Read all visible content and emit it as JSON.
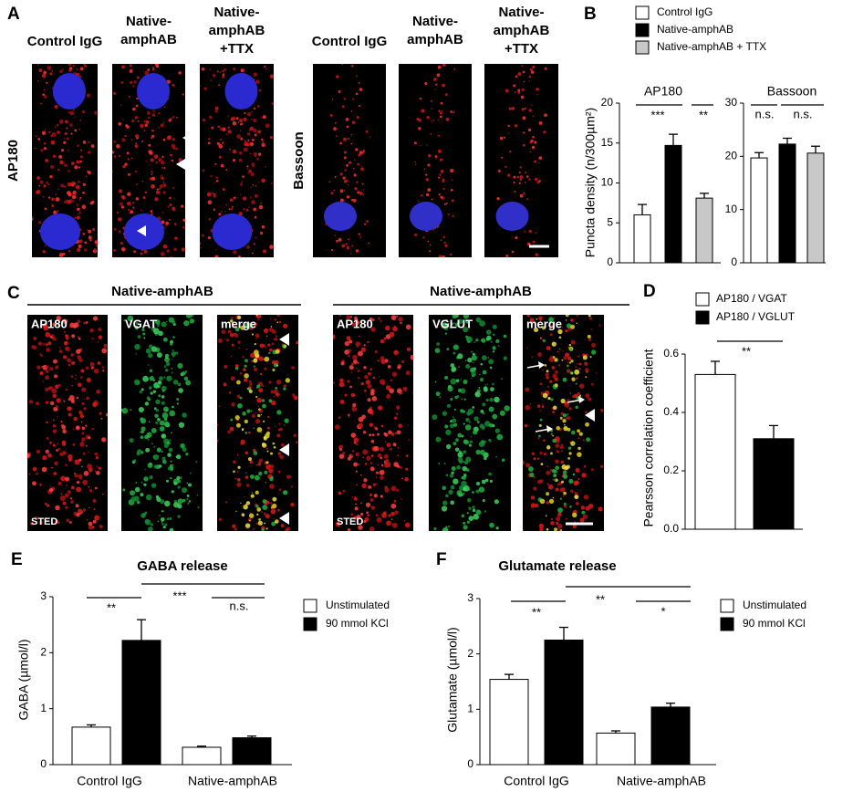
{
  "panels": [
    "A",
    "B",
    "C",
    "D",
    "E",
    "F"
  ],
  "panel_a": {
    "left_headers": [
      [
        "Control IgG"
      ],
      [
        "Native-",
        "amphAB"
      ],
      [
        "Native-",
        "amphAB",
        "+TTX"
      ]
    ],
    "right_headers": [
      [
        "Control IgG"
      ],
      [
        "Native-",
        "amphAB"
      ],
      [
        "Native-",
        "amphAB",
        "+TTX"
      ]
    ],
    "row_labels": [
      "AP180",
      "Bassoon"
    ]
  },
  "panel_c": {
    "groups": [
      "Native-amphAB",
      "Native-amphAB"
    ],
    "image_labels": [
      "AP180",
      "VGAT",
      "merge",
      "AP180",
      "VGLUT",
      "merge"
    ],
    "method_labels": [
      "STED",
      "STED"
    ]
  },
  "chart_data": [
    {
      "type": "bar",
      "title": "AP180",
      "ylabel": "Puncta density (n/300µm²)",
      "ylim": [
        0,
        20
      ],
      "yticks": [
        0,
        5,
        10,
        15,
        20
      ],
      "series": [
        {
          "name": "Control IgG",
          "color": "#ffffff",
          "values": [
            6
          ],
          "errors": [
            1.3
          ]
        },
        {
          "name": "Native-amphAB",
          "color": "#000000",
          "values": [
            14.7
          ],
          "errors": [
            1.4
          ]
        },
        {
          "name": "Native-amphAB + TTX",
          "color": "#c8c8c8",
          "values": [
            8.1
          ],
          "errors": [
            0.6
          ]
        }
      ],
      "annotations": [
        "***",
        "**"
      ]
    },
    {
      "type": "bar",
      "title": "Bassoon",
      "ylim": [
        0,
        30
      ],
      "yticks": [
        0,
        10,
        20,
        30
      ],
      "series": [
        {
          "color": "#ffffff",
          "values": [
            19.7
          ],
          "errors": [
            1
          ]
        },
        {
          "color": "#000000",
          "values": [
            22.3
          ],
          "errors": [
            1.1
          ]
        },
        {
          "color": "#c8c8c8",
          "values": [
            20.6
          ],
          "errors": [
            1.3
          ]
        }
      ],
      "annotations": [
        "n.s.",
        "n.s."
      ]
    },
    {
      "type": "bar",
      "ylabel": "Pearsson correlation coefficient",
      "ylim": [
        0,
        0.6
      ],
      "yticks": [
        {
          "value": 0,
          "label": "0.0"
        },
        0.2,
        0.4,
        0.6
      ],
      "series": [
        {
          "name": "AP180 / VGAT",
          "color": "#ffffff",
          "values": [
            0.53
          ],
          "errors": [
            0.045
          ]
        },
        {
          "name": "AP180 / VGLUT",
          "color": "#000000",
          "values": [
            0.31
          ],
          "errors": [
            0.045
          ]
        }
      ],
      "annotations": [
        "**"
      ]
    },
    {
      "type": "bar",
      "title": "GABA release",
      "ylabel": "GABA (µmol/l)",
      "categories": [
        "Control IgG",
        "Native-amphAB"
      ],
      "ylim": [
        0,
        3
      ],
      "yticks": [
        0,
        1,
        2,
        3
      ],
      "series": [
        {
          "name": "Unstimulated",
          "color": "#ffffff",
          "values": [
            0.67,
            0.31
          ],
          "errors": [
            0.04,
            0.02
          ]
        },
        {
          "name": "90 mmol KCl",
          "color": "#000000",
          "values": [
            2.22,
            0.48
          ],
          "errors": [
            0.37,
            0.03
          ]
        }
      ],
      "annotations": [
        "**",
        "***",
        "n.s."
      ]
    },
    {
      "type": "bar",
      "title": "Glutamate release",
      "ylabel": "Glutamate (µmol/l)",
      "categories": [
        "Control IgG",
        "Native-amphAB"
      ],
      "ylim": [
        0,
        3
      ],
      "yticks": [
        0,
        1,
        2,
        3
      ],
      "series": [
        {
          "name": "Unstimulated",
          "color": "#ffffff",
          "values": [
            1.54,
            0.57
          ],
          "errors": [
            0.09,
            0.04
          ]
        },
        {
          "name": "90 mmol KCl",
          "color": "#000000",
          "values": [
            2.25,
            1.04
          ],
          "errors": [
            0.23,
            0.07
          ]
        }
      ],
      "annotations": [
        "**",
        "**",
        "*"
      ]
    }
  ]
}
